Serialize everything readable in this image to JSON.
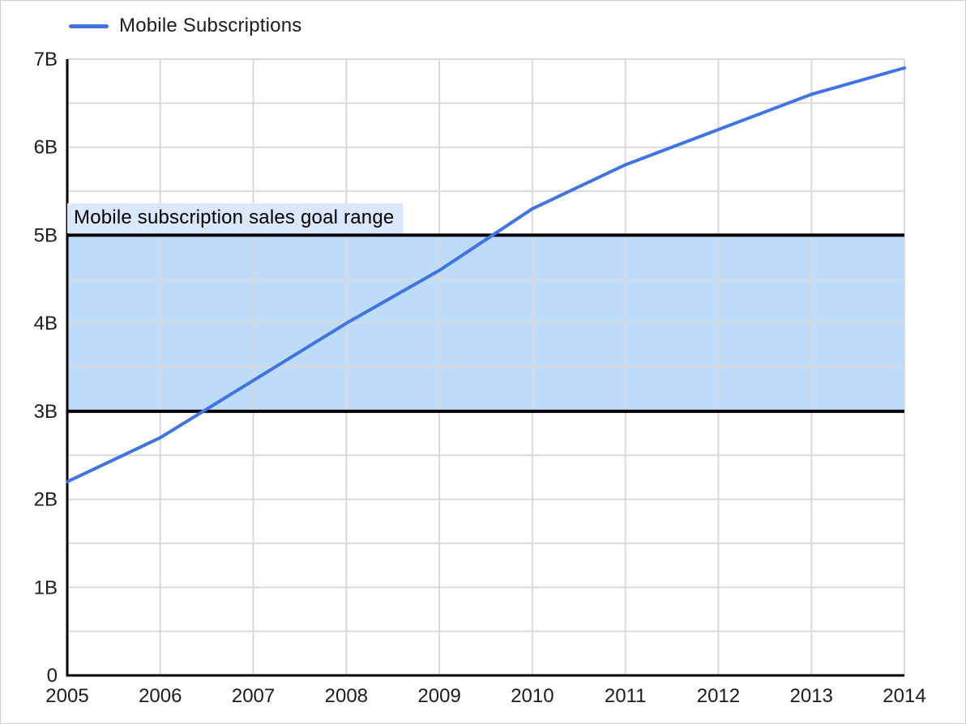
{
  "legend": {
    "series_label": "Mobile Subscriptions"
  },
  "chart_data": {
    "type": "line",
    "title": "",
    "xlabel": "",
    "ylabel": "",
    "categories": [
      "2005",
      "2006",
      "2007",
      "2008",
      "2009",
      "2010",
      "2011",
      "2012",
      "2013",
      "2014"
    ],
    "series": [
      {
        "name": "Mobile Subscriptions",
        "color": "#3e74e8",
        "values": [
          2.2,
          2.7,
          3.35,
          4.0,
          4.6,
          5.3,
          5.8,
          6.2,
          6.6,
          6.9
        ]
      }
    ],
    "ylim": [
      0,
      7
    ],
    "y_major_step": 1,
    "y_minor_step": 0.5,
    "y_tick_labels": [
      "0",
      "1B",
      "2B",
      "3B",
      "4B",
      "5B",
      "6B",
      "7B"
    ],
    "grid": "on",
    "legend_position": "top-left",
    "annotation_band": {
      "y_from": 3,
      "y_to": 5,
      "label": "Mobile subscription sales goal range",
      "fill_color": "#bcdcfa",
      "border_color": "#000000",
      "label_bg_color": "#d9e8fc"
    },
    "colors": {
      "gridline": "#d9d9d9",
      "axis": "#000000",
      "text": "#1c1c1c",
      "background": "#ffffff"
    }
  }
}
